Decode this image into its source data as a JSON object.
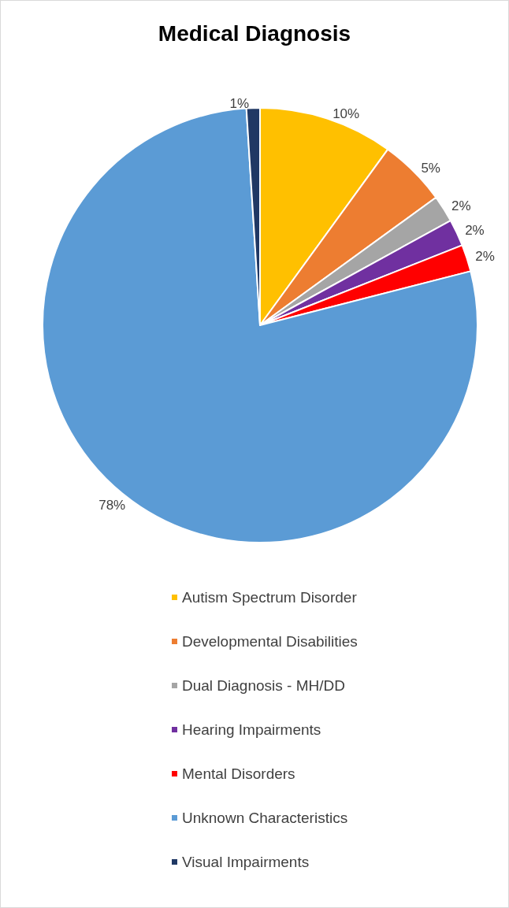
{
  "chart_data": {
    "type": "pie",
    "title": "Medical Diagnosis",
    "categories": [
      "Autism Spectrum Disorder",
      "Developmental Disabilities",
      "Dual Diagnosis - MH/DD",
      "Hearing Impairments",
      "Mental Disorders",
      "Unknown Characteristics",
      "Visual Impairments"
    ],
    "values": [
      10,
      5,
      2,
      2,
      2,
      78,
      1
    ],
    "colors": [
      "#ffc000",
      "#ed7d31",
      "#a5a5a5",
      "#7030a0",
      "#ff0000",
      "#5b9bd5",
      "#203864"
    ],
    "value_labels": [
      "10%",
      "5%",
      "2%",
      "2%",
      "2%",
      "78%",
      "1%"
    ],
    "legend": "bottom"
  }
}
